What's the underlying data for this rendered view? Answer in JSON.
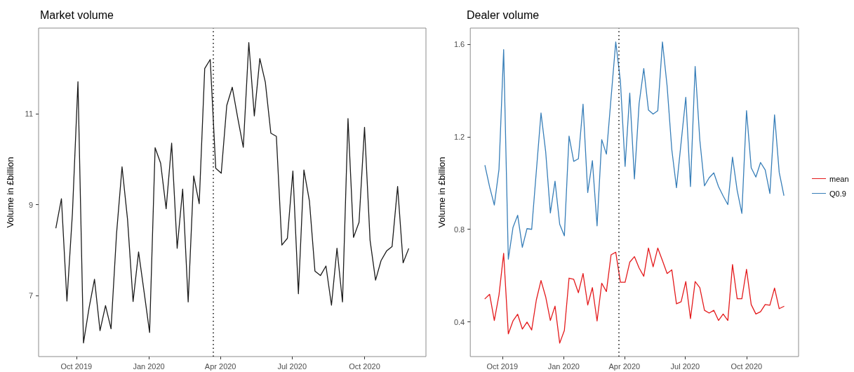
{
  "chart_data": [
    {
      "type": "line",
      "title": "Market volume",
      "ylabel": "Volume in £billion",
      "x": [
        "2019-09-05",
        "2019-09-12",
        "2019-09-19",
        "2019-09-26",
        "2019-10-03",
        "2019-10-10",
        "2019-10-17",
        "2019-10-24",
        "2019-10-31",
        "2019-11-07",
        "2019-11-14",
        "2019-11-21",
        "2019-11-28",
        "2019-12-05",
        "2019-12-12",
        "2019-12-19",
        "2019-12-26",
        "2020-01-02",
        "2020-01-09",
        "2020-01-16",
        "2020-01-23",
        "2020-01-30",
        "2020-02-06",
        "2020-02-13",
        "2020-02-20",
        "2020-02-27",
        "2020-03-05",
        "2020-03-12",
        "2020-03-19",
        "2020-03-26",
        "2020-04-02",
        "2020-04-09",
        "2020-04-16",
        "2020-04-23",
        "2020-04-30",
        "2020-05-07",
        "2020-05-14",
        "2020-05-21",
        "2020-05-28",
        "2020-06-04",
        "2020-06-11",
        "2020-06-18",
        "2020-06-25",
        "2020-07-02",
        "2020-07-09",
        "2020-07-16",
        "2020-07-23",
        "2020-07-30",
        "2020-08-06",
        "2020-08-13",
        "2020-08-20",
        "2020-08-27",
        "2020-09-03",
        "2020-09-10",
        "2020-09-17",
        "2020-09-24",
        "2020-10-01",
        "2020-10-08",
        "2020-10-15",
        "2020-10-22",
        "2020-10-29",
        "2020-11-05",
        "2020-11-12",
        "2020-11-19",
        "2020-11-26"
      ],
      "series": [
        {
          "color": "#1a1a1a",
          "values": [
            8.49,
            9.13,
            6.88,
            8.82,
            11.7,
            5.96,
            6.72,
            7.36,
            6.23,
            6.78,
            6.27,
            8.36,
            9.83,
            8.67,
            6.87,
            7.96,
            7.08,
            6.19,
            10.25,
            9.91,
            8.91,
            10.35,
            8.04,
            9.34,
            6.86,
            9.63,
            9.02,
            11.99,
            12.19,
            9.8,
            9.69,
            11.18,
            11.58,
            10.9,
            10.26,
            12.56,
            10.95,
            12.21,
            11.69,
            10.57,
            10.5,
            8.11,
            8.26,
            9.74,
            7.04,
            9.76,
            9.08,
            7.54,
            7.44,
            7.65,
            6.79,
            8.04,
            6.86,
            10.89,
            8.28,
            8.61,
            10.7,
            8.22,
            7.34,
            7.77,
            7.98,
            8.08,
            9.4,
            7.72,
            8.03
          ]
        }
      ],
      "xlim": [
        "2019-08-14",
        "2020-12-18"
      ],
      "xticks": [
        {
          "value": "2019-10-01",
          "label": "Oct 2019"
        },
        {
          "value": "2020-01-01",
          "label": "Jan 2020"
        },
        {
          "value": "2020-04-01",
          "label": "Apr 2020"
        },
        {
          "value": "2020-07-01",
          "label": "Jul 2020"
        },
        {
          "value": "2020-10-01",
          "label": "Oct 2020"
        }
      ],
      "ylim": [
        5.66,
        12.88
      ],
      "yticks": [
        7,
        9,
        11
      ],
      "ref_lines": [
        {
          "axis": "x",
          "value": "2020-03-23",
          "color": "#1a1a1a",
          "line_style": "dotted"
        }
      ]
    },
    {
      "type": "line",
      "title": "Dealer volume",
      "ylabel": "Volume in £billion",
      "legend": "right",
      "x": [
        "2019-09-05",
        "2019-09-12",
        "2019-09-19",
        "2019-09-26",
        "2019-10-03",
        "2019-10-10",
        "2019-10-17",
        "2019-10-24",
        "2019-10-31",
        "2019-11-07",
        "2019-11-14",
        "2019-11-21",
        "2019-11-28",
        "2019-12-05",
        "2019-12-12",
        "2019-12-19",
        "2019-12-26",
        "2020-01-02",
        "2020-01-09",
        "2020-01-16",
        "2020-01-23",
        "2020-01-30",
        "2020-02-06",
        "2020-02-13",
        "2020-02-20",
        "2020-02-27",
        "2020-03-05",
        "2020-03-12",
        "2020-03-19",
        "2020-03-26",
        "2020-04-02",
        "2020-04-09",
        "2020-04-16",
        "2020-04-23",
        "2020-04-30",
        "2020-05-07",
        "2020-05-14",
        "2020-05-21",
        "2020-05-28",
        "2020-06-04",
        "2020-06-11",
        "2020-06-18",
        "2020-06-25",
        "2020-07-02",
        "2020-07-09",
        "2020-07-16",
        "2020-07-23",
        "2020-07-30",
        "2020-08-06",
        "2020-08-13",
        "2020-08-20",
        "2020-08-27",
        "2020-09-03",
        "2020-09-10",
        "2020-09-17",
        "2020-09-24",
        "2020-10-01",
        "2020-10-08",
        "2020-10-15",
        "2020-10-22",
        "2020-10-29",
        "2020-11-05",
        "2020-11-12",
        "2020-11-19",
        "2020-11-26"
      ],
      "series": [
        {
          "name": "mean",
          "color": "#e41a1c",
          "values": [
            0.5,
            0.519,
            0.406,
            0.516,
            0.696,
            0.348,
            0.404,
            0.433,
            0.369,
            0.399,
            0.365,
            0.495,
            0.579,
            0.508,
            0.406,
            0.468,
            0.308,
            0.363,
            0.589,
            0.584,
            0.526,
            0.609,
            0.473,
            0.548,
            0.404,
            0.567,
            0.531,
            0.69,
            0.701,
            0.571,
            0.571,
            0.658,
            0.682,
            0.633,
            0.597,
            0.719,
            0.638,
            0.719,
            0.665,
            0.609,
            0.625,
            0.478,
            0.487,
            0.574,
            0.414,
            0.574,
            0.548,
            0.45,
            0.438,
            0.45,
            0.406,
            0.434,
            0.406,
            0.648,
            0.5,
            0.5,
            0.627,
            0.475,
            0.434,
            0.444,
            0.475,
            0.472,
            0.546,
            0.457,
            0.467
          ]
        },
        {
          "name": "Q0.9",
          "color": "#377eb8",
          "values": [
            1.076,
            0.983,
            0.905,
            1.059,
            1.577,
            0.671,
            0.808,
            0.861,
            0.722,
            0.803,
            0.8,
            1.052,
            1.303,
            1.135,
            0.871,
            1.008,
            0.822,
            0.772,
            1.203,
            1.094,
            1.105,
            1.341,
            0.959,
            1.097,
            0.815,
            1.188,
            1.125,
            1.369,
            1.61,
            1.44,
            1.072,
            1.389,
            1.018,
            1.343,
            1.495,
            1.316,
            1.298,
            1.313,
            1.61,
            1.419,
            1.145,
            0.98,
            1.176,
            1.371,
            0.985,
            1.504,
            1.186,
            0.988,
            1.023,
            1.044,
            0.985,
            0.944,
            0.907,
            1.112,
            0.968,
            0.869,
            1.313,
            1.066,
            1.026,
            1.089,
            1.057,
            0.955,
            1.295,
            1.046,
            0.947
          ]
        }
      ],
      "xlim": [
        "2019-08-14",
        "2020-12-18"
      ],
      "xticks": [
        {
          "value": "2019-10-01",
          "label": "Oct 2019"
        },
        {
          "value": "2020-01-01",
          "label": "Jan 2020"
        },
        {
          "value": "2020-04-01",
          "label": "Apr 2020"
        },
        {
          "value": "2020-07-01",
          "label": "Jul 2020"
        },
        {
          "value": "2020-10-01",
          "label": "Oct 2020"
        }
      ],
      "ylim": [
        0.25,
        1.67
      ],
      "yticks": [
        0.4,
        0.8,
        1.2,
        1.6
      ],
      "ref_lines": [
        {
          "axis": "x",
          "value": "2020-03-23",
          "color": "#1a1a1a",
          "line_style": "dotted"
        }
      ]
    }
  ]
}
